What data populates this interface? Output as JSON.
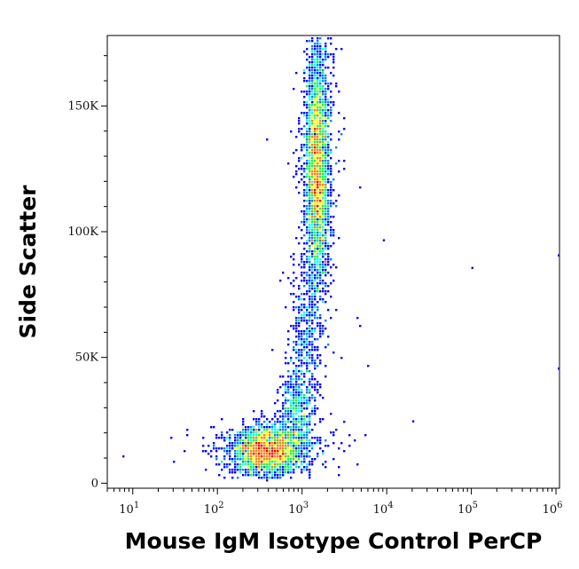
{
  "chart_data": {
    "type": "scatter",
    "style": "density-pseudocolor",
    "xlabel": "Mouse IgM Isotype Control PerCP",
    "ylabel": "Side Scatter",
    "x_scale": "log",
    "xlim": [
      5,
      1100000
    ],
    "ylim": [
      -2000,
      178000
    ],
    "x_ticks": [
      {
        "value": 10,
        "base": "10",
        "exp": "1"
      },
      {
        "value": 100,
        "base": "10",
        "exp": "2"
      },
      {
        "value": 1000,
        "base": "10",
        "exp": "3"
      },
      {
        "value": 10000,
        "base": "10",
        "exp": "4"
      },
      {
        "value": 100000,
        "base": "10",
        "exp": "5"
      },
      {
        "value": 1000000,
        "base": "10",
        "exp": "6"
      }
    ],
    "y_ticks": [
      {
        "value": 0,
        "label": "0"
      },
      {
        "value": 50000,
        "label": "50K"
      },
      {
        "value": 100000,
        "label": "100K"
      },
      {
        "value": 150000,
        "label": "150K"
      }
    ],
    "populations": [
      {
        "name_hint": "lymphocytes",
        "log10_x_center": 2.6,
        "log10_x_sd": 0.22,
        "y_center": 13000,
        "y_sd": 5000,
        "count": 2600
      },
      {
        "name_hint": "monocytes",
        "log10_x_center": 2.95,
        "log10_x_sd": 0.1,
        "y_center": 30000,
        "y_sd": 9000,
        "count": 500
      },
      {
        "name_hint": "bridge",
        "log10_x_center": 3.05,
        "log10_x_sd": 0.1,
        "y_center": 60000,
        "y_sd": 14000,
        "count": 350
      },
      {
        "name_hint": "granulocytes",
        "log10_x_center": 3.18,
        "log10_x_sd": 0.07,
        "y_center": 125000,
        "y_sd": 25000,
        "count": 3200
      }
    ],
    "outliers": [
      {
        "x": 100000,
        "y": 86000
      },
      {
        "x": 1080000,
        "y": 91000
      },
      {
        "x": 1080000,
        "y": 46000
      },
      {
        "x": 20000,
        "y": 25000
      },
      {
        "x": 9000,
        "y": 97000
      }
    ],
    "colormap": [
      "#0000ff",
      "#0080ff",
      "#00ffff",
      "#00ff40",
      "#ffff00",
      "#ff8000",
      "#ff0000"
    ]
  }
}
